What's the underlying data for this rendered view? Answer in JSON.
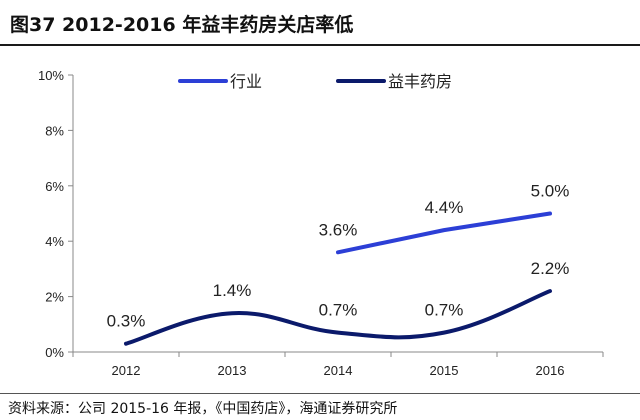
{
  "header": {
    "title": "图37 2012-2016 年益丰药房关店率低"
  },
  "footer": {
    "source": "资料来源：公司 2015-16 年报，《中国药店》，海通证券研究所"
  },
  "colors": {
    "industry": "#2c3fd6",
    "yifeng": "#0b1a6b",
    "axis": "#888888"
  },
  "chart_data": {
    "type": "line",
    "title": "图37 2012-2016 年益丰药房关店率低",
    "xlabel": "",
    "ylabel": "",
    "categories": [
      "2012",
      "2013",
      "2014",
      "2015",
      "2016"
    ],
    "ylim": [
      0,
      10
    ],
    "yticks": [
      0,
      2,
      4,
      6,
      8,
      10
    ],
    "ytick_labels": [
      "0%",
      "2%",
      "4%",
      "6%",
      "8%",
      "10%"
    ],
    "grid": false,
    "legend_position": "top",
    "series": [
      {
        "name": "行业",
        "values": [
          null,
          null,
          3.6,
          4.4,
          5.0
        ],
        "labels": [
          "",
          "",
          "3.6%",
          "4.4%",
          "5.0%"
        ],
        "color": "#2c3fd6",
        "smooth": false
      },
      {
        "name": "益丰药房",
        "values": [
          0.3,
          1.4,
          0.7,
          0.7,
          2.2
        ],
        "labels": [
          "0.3%",
          "1.4%",
          "0.7%",
          "0.7%",
          "2.2%"
        ],
        "color": "#0b1a6b",
        "smooth": true
      }
    ]
  }
}
